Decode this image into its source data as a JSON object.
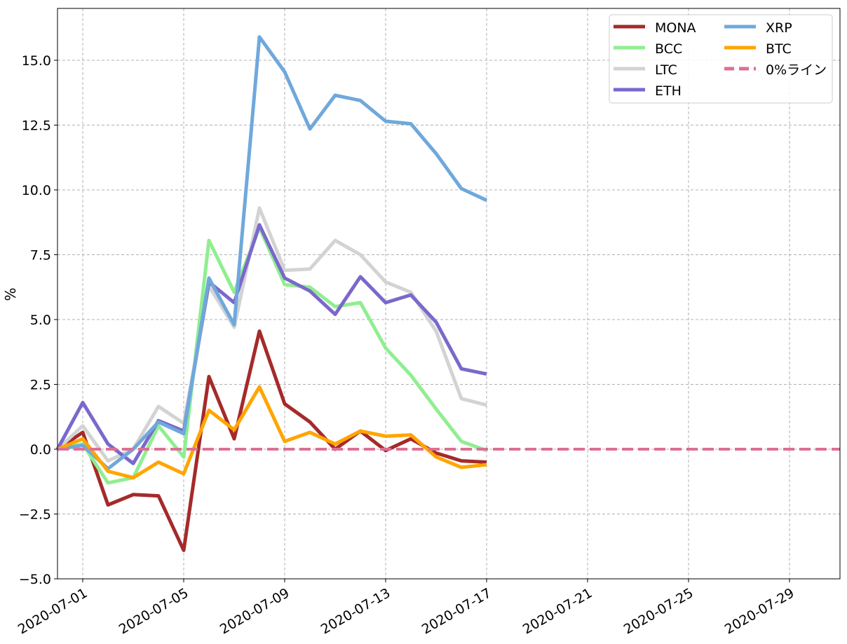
{
  "chart_data": {
    "type": "line",
    "title": "",
    "xlabel": "",
    "ylabel": "%",
    "x": [
      "2020-06-30",
      "2020-07-01",
      "2020-07-02",
      "2020-07-03",
      "2020-07-04",
      "2020-07-05",
      "2020-07-06",
      "2020-07-07",
      "2020-07-08",
      "2020-07-09",
      "2020-07-10",
      "2020-07-11",
      "2020-07-12",
      "2020-07-13",
      "2020-07-14",
      "2020-07-15",
      "2020-07-16",
      "2020-07-17"
    ],
    "xlim": [
      "2020-06-30",
      "2020-07-31"
    ],
    "ylim": [
      -5.0,
      17.0
    ],
    "xticks": [
      "2020-07-01",
      "2020-07-05",
      "2020-07-09",
      "2020-07-13",
      "2020-07-17",
      "2020-07-21",
      "2020-07-25",
      "2020-07-29"
    ],
    "yticks": [
      "−5.0",
      "−2.5",
      "0.0",
      "2.5",
      "5.0",
      "7.5",
      "10.0",
      "12.5",
      "15.0"
    ],
    "ytick_values": [
      -5,
      -2.5,
      0,
      2.5,
      5,
      7.5,
      10,
      12.5,
      15
    ],
    "grid": true,
    "legend_placement": "top-right",
    "series": [
      {
        "name": "MONA",
        "color": "#a52a2a",
        "values": [
          0,
          0.65,
          -2.15,
          -1.75,
          -1.8,
          -3.9,
          2.8,
          0.4,
          4.55,
          1.75,
          1.05,
          0.0,
          0.7,
          -0.05,
          0.4,
          -0.15,
          -0.45,
          -0.5
        ]
      },
      {
        "name": "BCC",
        "color": "#90ee90",
        "values": [
          0,
          0.2,
          -1.3,
          -1.1,
          0.9,
          -0.3,
          8.05,
          6.05,
          8.55,
          6.35,
          6.25,
          5.5,
          5.65,
          3.9,
          2.85,
          1.55,
          0.3,
          -0.05
        ]
      },
      {
        "name": "LTC",
        "color": "#d3d3d3",
        "values": [
          0,
          0.9,
          -0.45,
          0.0,
          1.65,
          1.0,
          6.3,
          4.7,
          9.3,
          6.9,
          6.95,
          8.05,
          7.5,
          6.45,
          6.05,
          4.55,
          1.95,
          1.7
        ]
      },
      {
        "name": "ETH",
        "color": "#7b68cc",
        "values": [
          0,
          1.8,
          0.2,
          -0.55,
          1.1,
          0.7,
          6.45,
          5.65,
          8.65,
          6.6,
          6.1,
          5.2,
          6.65,
          5.65,
          5.95,
          4.9,
          3.1,
          2.9
        ]
      },
      {
        "name": "XRP",
        "color": "#6fa8dc",
        "values": [
          0,
          0.15,
          -0.75,
          0.0,
          1.05,
          0.6,
          6.6,
          4.8,
          15.9,
          14.55,
          12.35,
          13.65,
          13.45,
          12.65,
          12.55,
          11.4,
          10.05,
          9.6
        ]
      },
      {
        "name": "BTC",
        "color": "#ffa500",
        "values": [
          0,
          0.4,
          -0.85,
          -1.1,
          -0.5,
          -0.95,
          1.5,
          0.75,
          2.4,
          0.3,
          0.65,
          0.2,
          0.7,
          0.5,
          0.55,
          -0.3,
          -0.7,
          -0.6
        ]
      }
    ],
    "reference_line": {
      "name": "0%ライン",
      "y": 0,
      "color": "#db7093",
      "style": "dashed"
    }
  }
}
